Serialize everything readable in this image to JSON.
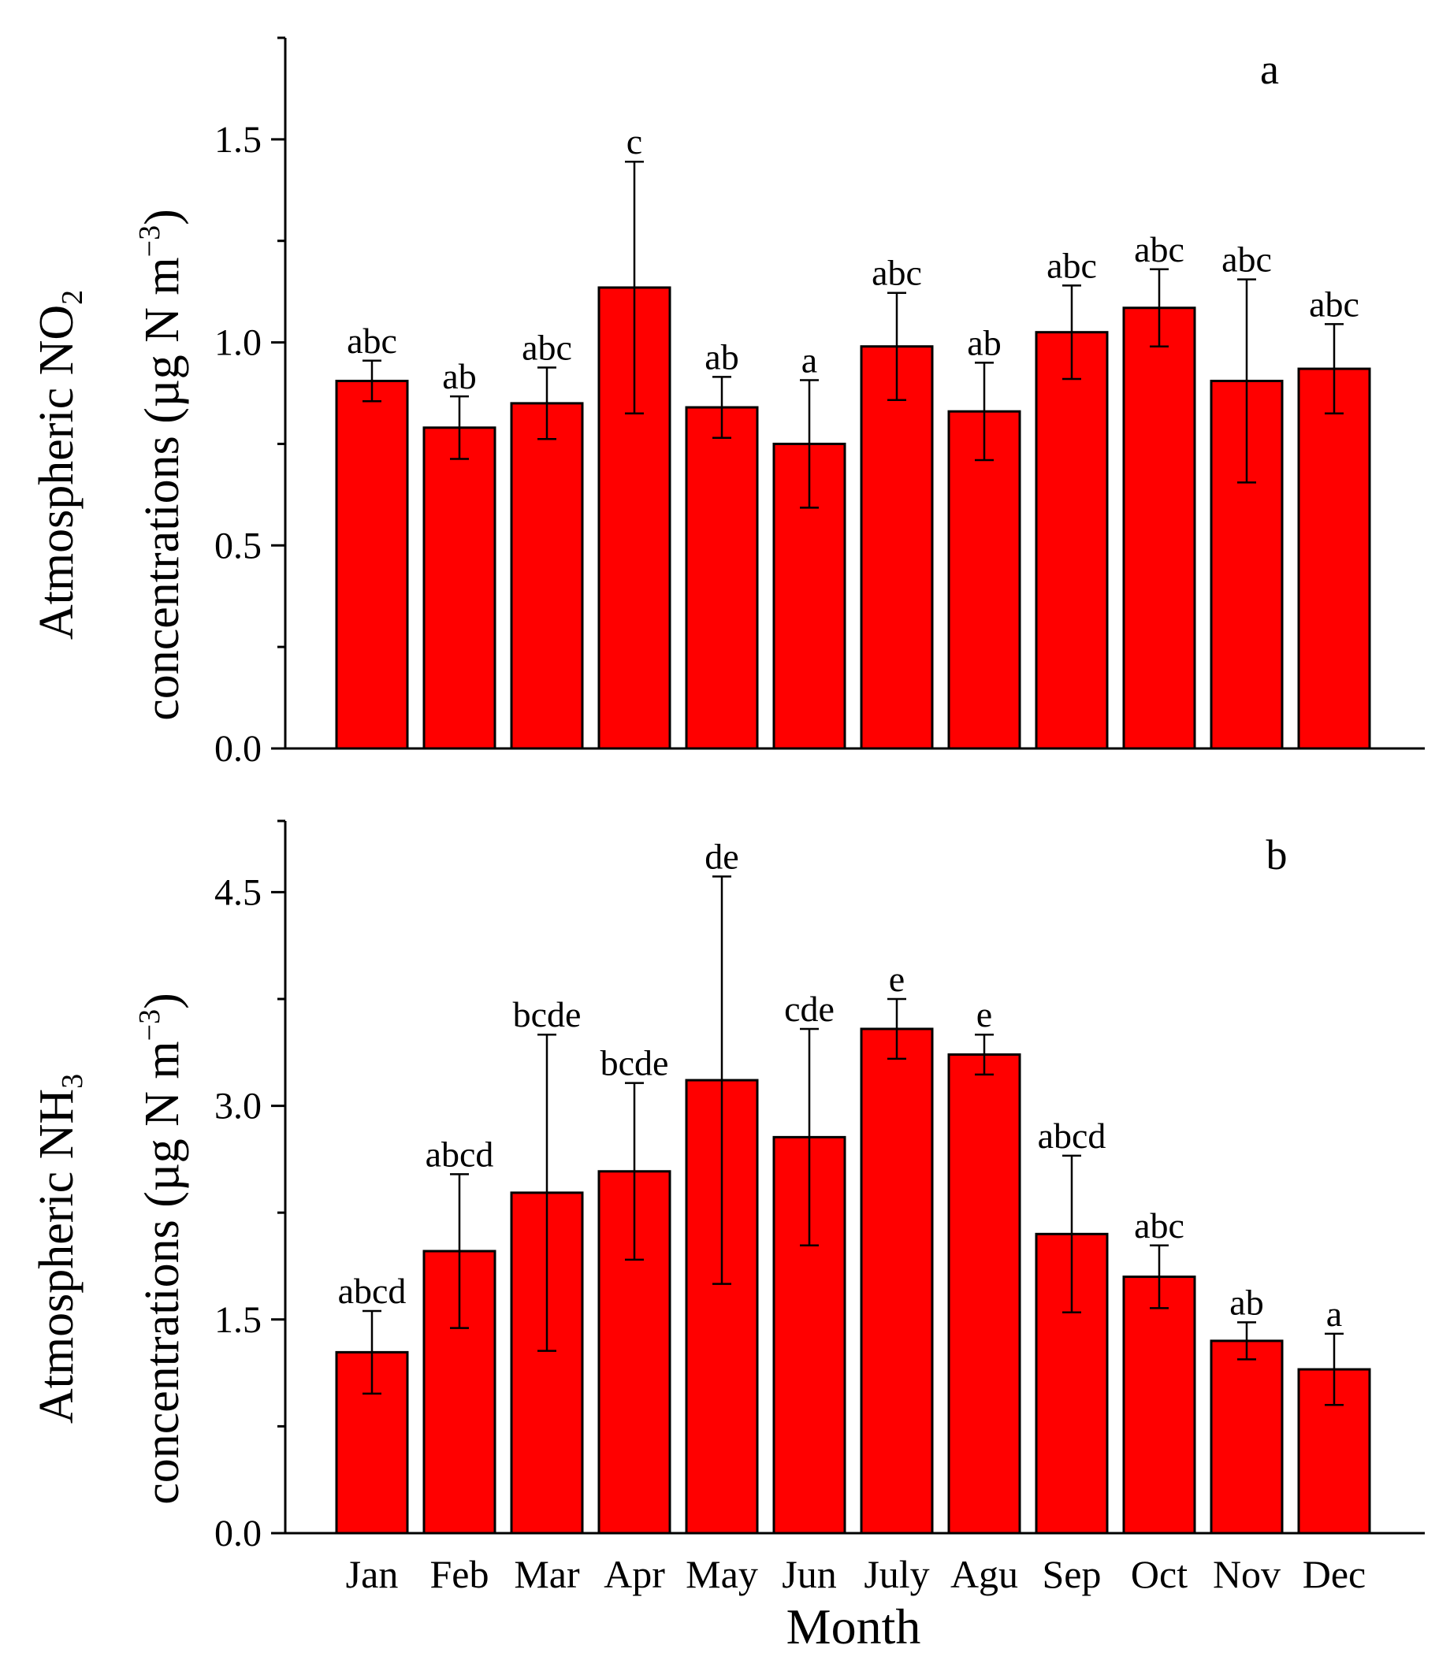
{
  "figure": {
    "xlabel": "Month"
  },
  "chart_data": [
    {
      "type": "bar",
      "panel_label": "a",
      "title": "",
      "ylabel_line1_main": "Atmospheric NO",
      "ylabel_line1_sub": "2",
      "ylabel_line2_main": "concentrations (µg N m",
      "ylabel_line2_sup": "−3",
      "ylabel_line2_end": ")",
      "ylim": [
        0,
        1.75
      ],
      "yticks": [
        0.0,
        0.5,
        1.0,
        1.5
      ],
      "ytick_labels": [
        "0.0",
        "0.5",
        "1.0",
        "1.5"
      ],
      "minor_yticks": [
        0.25,
        0.75,
        1.25
      ],
      "categories": [
        "Jan",
        "Feb",
        "Mar",
        "Apr",
        "May",
        "Jun",
        "July",
        "Agu",
        "Sep",
        "Oct",
        "Nov",
        "Dec"
      ],
      "values": [
        0.905,
        0.79,
        0.85,
        1.135,
        0.84,
        0.75,
        0.99,
        0.83,
        1.025,
        1.085,
        0.905,
        0.935
      ],
      "errors": [
        0.05,
        0.077,
        0.088,
        0.31,
        0.075,
        0.157,
        0.132,
        0.12,
        0.115,
        0.095,
        0.25,
        0.11
      ],
      "significance_labels": [
        "abc",
        "ab",
        "abc",
        "c",
        "ab",
        "a",
        "abc",
        "ab",
        "abc",
        "abc",
        "abc",
        "abc"
      ],
      "bar_color": "#ff0000",
      "edge_color": "#000000",
      "grid": false
    },
    {
      "type": "bar",
      "panel_label": "b",
      "title": "",
      "ylabel_line1_main": "Atmospheric NH",
      "ylabel_line1_sub": "3",
      "ylabel_line2_main": "concentrations (µg N m",
      "ylabel_line2_sup": "−3",
      "ylabel_line2_end": ")",
      "ylim": [
        0,
        5.0
      ],
      "yticks": [
        0.0,
        1.5,
        3.0,
        4.5
      ],
      "ytick_labels": [
        "0.0",
        "1.5",
        "3.0",
        "4.5"
      ],
      "minor_yticks": [
        0.75,
        2.25,
        3.75
      ],
      "categories": [
        "Jan",
        "Feb",
        "Mar",
        "Apr",
        "May",
        "Jun",
        "July",
        "Agu",
        "Sep",
        "Oct",
        "Nov",
        "Dec"
      ],
      "values": [
        1.27,
        1.98,
        2.39,
        2.54,
        3.18,
        2.78,
        3.54,
        3.36,
        2.1,
        1.8,
        1.35,
        1.15
      ],
      "errors": [
        0.29,
        0.54,
        1.11,
        0.62,
        1.43,
        0.76,
        0.21,
        0.14,
        0.55,
        0.22,
        0.13,
        0.25
      ],
      "significance_labels": [
        "abcd",
        "abcd",
        "bcde",
        "bcde",
        "de",
        "cde",
        "e",
        "e",
        "abcd",
        "abc",
        "ab",
        "a"
      ],
      "bar_color": "#ff0000",
      "edge_color": "#000000",
      "grid": false
    }
  ]
}
